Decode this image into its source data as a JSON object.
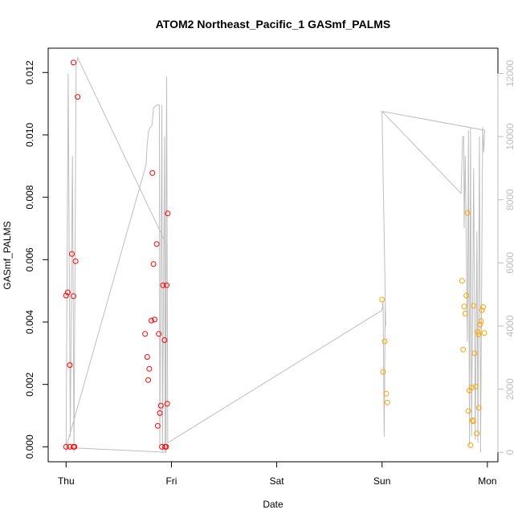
{
  "chart_data": {
    "type": "scatter",
    "title": "ATOM2 Northeast_Pacific_1 GASmf_PALMS",
    "xlabel": "Date",
    "ylabel": "GASmf_PALMS",
    "x_tick_labels": [
      "Thu",
      "Fri",
      "Sat",
      "Sun",
      "Mon"
    ],
    "x_axis_unit": "days from Thu 00:00",
    "xlim": [
      -0.17,
      4.1
    ],
    "ylim": [
      -0.00048,
      0.01278
    ],
    "y_ticks": [
      0.0,
      0.002,
      0.004,
      0.006,
      0.008,
      0.01,
      0.012
    ],
    "y_tick_labels": [
      "0.000",
      "0.002",
      "0.004",
      "0.006",
      "0.008",
      "0.010",
      "0.012"
    ],
    "y2lim": [
      -300,
      12800
    ],
    "y2_ticks": [
      0,
      2000,
      4000,
      6000,
      8000,
      10000,
      12000
    ],
    "y2_tick_labels": [
      "0",
      "2000",
      "4000",
      "6000",
      "8000",
      "10000",
      "12000"
    ],
    "grid": false,
    "colors": {
      "series_red": "#ff0000",
      "series_orange": "#ffa500",
      "altitude_line": "#bebebe"
    },
    "series": [
      {
        "color": "red",
        "points": [
          [
            0.0,
            0.00485
          ],
          [
            0.016,
            0.00495
          ],
          [
            0.035,
            0.00262
          ],
          [
            0.035,
            0.0
          ],
          [
            0.055,
            0.00618
          ],
          [
            0.07,
            0.00483
          ],
          [
            0.07,
            0.0
          ],
          [
            0.07,
            0.01232
          ],
          [
            0.09,
            0.00595
          ],
          [
            0.11,
            0.01122
          ],
          [
            0.08,
            0.0
          ],
          [
            0.0,
            0.0
          ],
          [
            0.75,
            0.00362
          ],
          [
            0.77,
            0.00288
          ],
          [
            0.78,
            0.00214
          ],
          [
            0.79,
            0.0025
          ],
          [
            0.81,
            0.00405
          ],
          [
            0.82,
            0.00878
          ],
          [
            0.83,
            0.00586
          ],
          [
            0.84,
            0.00408
          ],
          [
            0.86,
            0.0065
          ],
          [
            0.87,
            0.00067
          ],
          [
            0.88,
            0.00362
          ],
          [
            0.89,
            0.00108
          ],
          [
            0.9,
            0.00132
          ],
          [
            0.91,
            0.0
          ],
          [
            0.92,
            0.00518
          ],
          [
            0.935,
            0.00342
          ],
          [
            0.94,
            0.0
          ],
          [
            0.955,
            0.00518
          ],
          [
            0.96,
            0.00138
          ],
          [
            0.95,
            0.0
          ],
          [
            0.965,
            0.00748
          ]
        ]
      },
      {
        "color": "orange",
        "points": [
          [
            3.0,
            0.00472
          ],
          [
            3.01,
            0.0024
          ],
          [
            3.025,
            0.00338
          ],
          [
            3.04,
            0.0017
          ],
          [
            3.05,
            0.00142
          ],
          [
            3.76,
            0.00532
          ],
          [
            3.77,
            0.00312
          ],
          [
            3.78,
            0.0045
          ],
          [
            3.79,
            0.00427
          ],
          [
            3.8,
            0.00485
          ],
          [
            3.81,
            0.0075
          ],
          [
            3.82,
            0.00115
          ],
          [
            3.83,
            0.0018
          ],
          [
            3.84,
            5e-05
          ],
          [
            3.85,
            0.0019
          ],
          [
            3.86,
            0.00085
          ],
          [
            3.865,
            0.00082
          ],
          [
            3.87,
            0.00452
          ],
          [
            3.88,
            0.003
          ],
          [
            3.89,
            0.00193
          ],
          [
            3.9,
            0.00043
          ],
          [
            3.91,
            0.00368
          ],
          [
            3.915,
            0.0036
          ],
          [
            3.92,
            0.00125
          ],
          [
            3.93,
            0.00392
          ],
          [
            3.94,
            0.00403
          ],
          [
            3.95,
            0.00438
          ],
          [
            3.96,
            0.00448
          ],
          [
            3.97,
            0.00365
          ]
        ]
      }
    ],
    "altitude_line": {
      "axis": "right",
      "points": [
        [
          0.0,
          0
        ],
        [
          0.02,
          12000
        ],
        [
          0.04,
          500
        ],
        [
          0.06,
          9400
        ],
        [
          0.075,
          0
        ],
        [
          0.095,
          12200
        ],
        [
          0.11,
          12500
        ],
        [
          0.95,
          6600
        ],
        [
          0.95,
          0
        ],
        [
          0.0,
          150
        ],
        [
          0.75,
          9000
        ],
        [
          0.76,
          9150
        ],
        [
          0.77,
          9750
        ],
        [
          0.785,
          10200
        ],
        [
          0.8,
          10300
        ],
        [
          0.815,
          10350
        ],
        [
          0.83,
          10900
        ],
        [
          0.86,
          11000
        ],
        [
          0.885,
          11000
        ],
        [
          0.89,
          200
        ],
        [
          0.91,
          11000
        ],
        [
          0.915,
          0
        ],
        [
          0.935,
          10000
        ],
        [
          0.94,
          0
        ],
        [
          0.955,
          11900
        ],
        [
          0.965,
          300
        ],
        [
          3.0,
          4500
        ],
        [
          3.01,
          4800
        ],
        [
          3.02,
          500
        ],
        [
          3.03,
          4700
        ],
        [
          3.035,
          4000
        ],
        [
          3.0,
          10800
        ],
        [
          3.75,
          8200
        ],
        [
          3.765,
          10000
        ],
        [
          3.775,
          10000
        ],
        [
          3.78,
          7100
        ],
        [
          3.79,
          9400
        ],
        [
          3.81,
          3500
        ],
        [
          3.82,
          10200
        ],
        [
          3.83,
          200
        ],
        [
          3.84,
          10300
        ],
        [
          3.85,
          500
        ],
        [
          3.87,
          9000
        ],
        [
          3.885,
          400
        ],
        [
          3.9,
          7000
        ],
        [
          3.91,
          300
        ],
        [
          3.925,
          10000
        ],
        [
          3.935,
          0
        ],
        [
          3.955,
          10300
        ],
        [
          3.965,
          9500
        ],
        [
          3.975,
          10200
        ],
        [
          3.0,
          10800
        ]
      ]
    }
  }
}
